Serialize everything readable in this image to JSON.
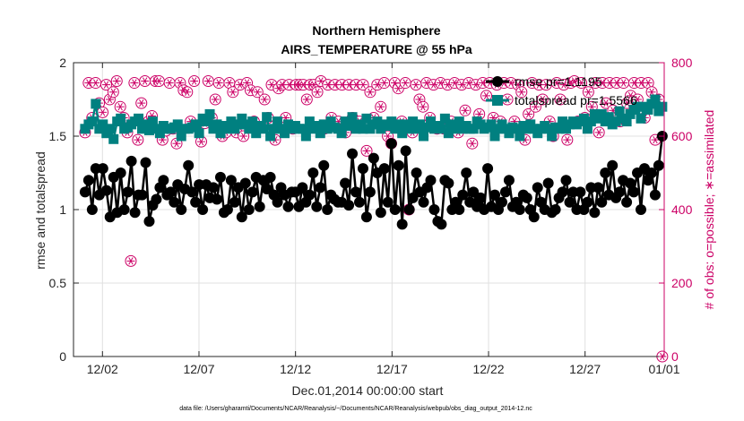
{
  "chart_data": {
    "type": "line",
    "title": "Northern Hemisphere",
    "subtitle": "AIRS_TEMPERATURE @ 55 hPa",
    "xlabel": "Dec.01,2014 00:00:00 start",
    "ylabel_left": "rmse and totalspread",
    "ylabel_right": "# of obs: o=possible; ∗=assimilated",
    "footer": "data file: /Users/gharamti/Documents/NCAR/Reanalysis/~/Documents/NCAR/Reanalysis/webpub/obs_diag_output_2014-12.nc",
    "xlim": [
      0.5,
      31.1
    ],
    "ylim_left": [
      0,
      2
    ],
    "ylim_right": [
      0,
      800
    ],
    "x_ticks": [
      {
        "value": 2,
        "label": "12/02"
      },
      {
        "value": 7,
        "label": "12/07"
      },
      {
        "value": 12,
        "label": "12/12"
      },
      {
        "value": 17,
        "label": "12/17"
      },
      {
        "value": 22,
        "label": "12/22"
      },
      {
        "value": 27,
        "label": "12/27"
      },
      {
        "value": 32,
        "label": "01/01"
      }
    ],
    "y_ticks_left": [
      "0",
      "0.5",
      "1",
      "1.5",
      "2"
    ],
    "y_ticks_right": [
      "0",
      "200",
      "400",
      "600",
      "800"
    ],
    "grid": true,
    "legend_position": "top-right",
    "colors": {
      "rmse": "#000000",
      "totalspread": "#008080",
      "obs": "#cc0066"
    },
    "series": [
      {
        "name": "rmse pr=1.1195",
        "axis": "left",
        "values": [
          1.12,
          1.2,
          1.0,
          1.28,
          1.1,
          1.28,
          1.13,
          0.95,
          1.22,
          0.98,
          1.25,
          1.0,
          1.12,
          1.33,
          0.98,
          1.1,
          1.1,
          1.32,
          0.92,
          1.03,
          1.07,
          1.15,
          1.2,
          1.1,
          1.12,
          1.05,
          1.17,
          1.0,
          1.14,
          1.3,
          1.12,
          1.05,
          1.17,
          1.0,
          1.17,
          1.08,
          1.15,
          1.07,
          1.22,
          0.98,
          1.0,
          1.2,
          1.05,
          1.15,
          0.95,
          1.18,
          1.0,
          1.12,
          1.22,
          1.02,
          1.2,
          1.14,
          1.22,
          1.1,
          1.05,
          1.15,
          1.1,
          1.02,
          1.12,
          1.12,
          1.02,
          1.15,
          1.05,
          1.1,
          1.25,
          1.02,
          1.15,
          1.3,
          1.0,
          1.1,
          1.07,
          1.05,
          1.05,
          1.18,
          1.03,
          1.38,
          1.12,
          1.05,
          1.28,
          0.95,
          1.12,
          1.35,
          1.25,
          0.98,
          1.28,
          1.05,
          1.45,
          1.0,
          1.3,
          0.9,
          1.4,
          1.0,
          1.08,
          1.25,
          1.12,
          1.05,
          1.15,
          1.2,
          1.0,
          0.92,
          0.9,
          1.2,
          1.18,
          1.0,
          1.05,
          1.0,
          1.1,
          1.25,
          1.05,
          1.12,
          1.02,
          1.08,
          1.0,
          1.28,
          1.02,
          1.1,
          1.0,
          1.05,
          1.12,
          1.2,
          1.02,
          1.05,
          1.0,
          1.1,
          1.08,
          1.0,
          0.95,
          1.15,
          1.05,
          1.0,
          1.18,
          0.98,
          1.0,
          1.08,
          1.12,
          1.2,
          1.05,
          1.12,
          1.0,
          1.12,
          1.0,
          1.05,
          1.15,
          0.98,
          1.15,
          1.05,
          1.25,
          1.1,
          1.3,
          1.08,
          1.12,
          1.2,
          1.05,
          1.18,
          1.12,
          1.25,
          1.0,
          1.28,
          1.2,
          1.25,
          1.1,
          1.3,
          1.5
        ]
      },
      {
        "name": "totalspread pr=1.5566",
        "axis": "left",
        "values": [
          1.55,
          1.58,
          1.6,
          1.72,
          1.55,
          1.58,
          1.52,
          1.55,
          1.48,
          1.6,
          1.62,
          1.55,
          1.56,
          1.58,
          1.6,
          1.62,
          1.55,
          1.58,
          1.54,
          1.6,
          1.55,
          1.52,
          1.57,
          1.55,
          1.55,
          1.56,
          1.58,
          1.5,
          1.55,
          1.55,
          1.56,
          1.58,
          1.52,
          1.62,
          1.6,
          1.65,
          1.55,
          1.58,
          1.52,
          1.57,
          1.55,
          1.6,
          1.55,
          1.58,
          1.62,
          1.58,
          1.55,
          1.6,
          1.52,
          1.57,
          1.55,
          1.63,
          1.5,
          1.55,
          1.6,
          1.55,
          1.52,
          1.58,
          1.55,
          1.57,
          1.55,
          1.55,
          1.5,
          1.6,
          1.55,
          1.57,
          1.52,
          1.58,
          1.55,
          1.6,
          1.56,
          1.55,
          1.52,
          1.6,
          1.57,
          1.63,
          1.55,
          1.58,
          1.55,
          1.62,
          1.55,
          1.58,
          1.6,
          1.55,
          1.58,
          1.57,
          1.6,
          1.55,
          1.58,
          1.52,
          1.58,
          1.55,
          1.6,
          1.55,
          1.58,
          1.5,
          1.56,
          1.6,
          1.55,
          1.57,
          1.55,
          1.62,
          1.52,
          1.58,
          1.55,
          1.6,
          1.55,
          1.57,
          1.55,
          1.55,
          1.6,
          1.58,
          1.55,
          1.56,
          1.58,
          1.5,
          1.55,
          1.58,
          1.55,
          1.52,
          1.56,
          1.55,
          1.5,
          1.57,
          1.55,
          1.58,
          1.55,
          1.52,
          1.55,
          1.57,
          1.55,
          1.5,
          1.56,
          1.55,
          1.6,
          1.55,
          1.58,
          1.6,
          1.58,
          1.6,
          1.62,
          1.55,
          1.6,
          1.65,
          1.62,
          1.65,
          1.6,
          1.63,
          1.58,
          1.6,
          1.67,
          1.62,
          1.6,
          1.65,
          1.68,
          1.7,
          1.62,
          1.7,
          1.68,
          1.72,
          1.75,
          1.67,
          1.7
        ]
      },
      {
        "name": "obs possible",
        "axis": "right",
        "values": [
          610,
          745,
          650,
          745,
          690,
          665,
          740,
          700,
          720,
          750,
          680,
          650,
          610,
          260,
          745,
          590,
          690,
          750,
          640,
          655,
          750,
          750,
          590,
          615,
          745,
          620,
          580,
          745,
          725,
          720,
          640,
          750,
          625,
          585,
          635,
          750,
          650,
          700,
          745,
          600,
          610,
          745,
          720,
          610,
          740,
          600,
          745,
          725,
          640,
          720,
          625,
          700,
          650,
          740,
          590,
          730,
          740,
          650,
          740,
          620,
          740,
          740,
          740,
          700,
          740,
          740,
          720,
          750,
          620,
          740,
          650,
          740,
          640,
          740,
          610,
          740,
          650,
          740,
          640,
          740,
          560,
          720,
          650,
          740,
          680,
          745,
          600,
          580,
          745,
          730,
          640,
          745,
          400,
          610,
          740,
          700,
          680,
          745,
          650,
          740,
          620,
          745,
          620,
          740,
          640,
          745,
          610,
          740,
          670,
          745,
          580,
          740,
          660,
          745,
          710,
          745,
          650,
          740,
          640,
          745,
          700,
          745,
          640,
          740,
          720,
          590,
          660,
          745,
          680,
          740,
          700,
          740,
          640,
          600,
          745,
          700,
          740,
          590,
          745,
          750,
          640,
          745,
          650,
          720,
          680,
          745,
          610,
          745,
          690,
          745,
          670,
          745,
          640,
          745,
          690,
          710,
          745,
          700,
          745,
          650,
          745,
          720,
          590,
          700,
          0
        ]
      },
      {
        "name": "obs assimilated",
        "axis": "right",
        "values": [
          610,
          745,
          650,
          745,
          690,
          665,
          740,
          700,
          720,
          750,
          680,
          650,
          610,
          260,
          745,
          590,
          690,
          750,
          640,
          655,
          750,
          750,
          590,
          615,
          745,
          620,
          580,
          745,
          725,
          720,
          640,
          750,
          625,
          585,
          635,
          750,
          650,
          700,
          745,
          600,
          610,
          745,
          720,
          610,
          740,
          600,
          745,
          725,
          640,
          720,
          625,
          700,
          650,
          740,
          590,
          730,
          740,
          650,
          740,
          620,
          740,
          740,
          740,
          700,
          740,
          740,
          720,
          750,
          620,
          740,
          650,
          740,
          640,
          740,
          610,
          740,
          650,
          740,
          640,
          740,
          560,
          720,
          650,
          740,
          680,
          745,
          600,
          580,
          745,
          730,
          640,
          745,
          400,
          610,
          740,
          700,
          680,
          745,
          650,
          740,
          620,
          745,
          620,
          740,
          640,
          745,
          610,
          740,
          670,
          745,
          580,
          740,
          660,
          745,
          710,
          745,
          650,
          740,
          640,
          745,
          700,
          745,
          640,
          740,
          720,
          590,
          660,
          745,
          680,
          740,
          700,
          740,
          640,
          600,
          745,
          700,
          740,
          590,
          745,
          750,
          640,
          745,
          650,
          720,
          680,
          745,
          610,
          745,
          690,
          745,
          670,
          745,
          640,
          745,
          690,
          710,
          745,
          700,
          745,
          650,
          745,
          720,
          590,
          700,
          0
        ]
      }
    ]
  }
}
